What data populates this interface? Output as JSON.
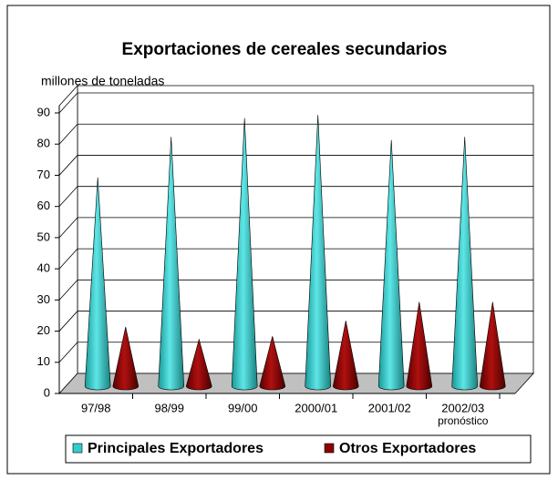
{
  "chart_data": {
    "type": "bar3d-cone",
    "title": "Exportaciones de cereales secundarios",
    "y_axis_label": "millones de toneladas",
    "categories": [
      "97/98",
      "98/99",
      "99/00",
      "2000/01",
      "2001/02",
      "2002/03"
    ],
    "annotation": "pronóstico",
    "series": [
      {
        "name": "Principales Exportadores",
        "color": "#33cccc",
        "values": [
          67,
          80,
          86,
          87,
          79,
          80
        ]
      },
      {
        "name": "Otros Exportadores",
        "color": "#8b0000",
        "values": [
          19,
          15,
          16,
          21,
          27,
          27
        ]
      }
    ],
    "ylim": [
      0,
      90
    ],
    "yticks": [
      0,
      10,
      20,
      30,
      40,
      50,
      60,
      70,
      80,
      90
    ],
    "grid": true,
    "legend": "bottom"
  }
}
